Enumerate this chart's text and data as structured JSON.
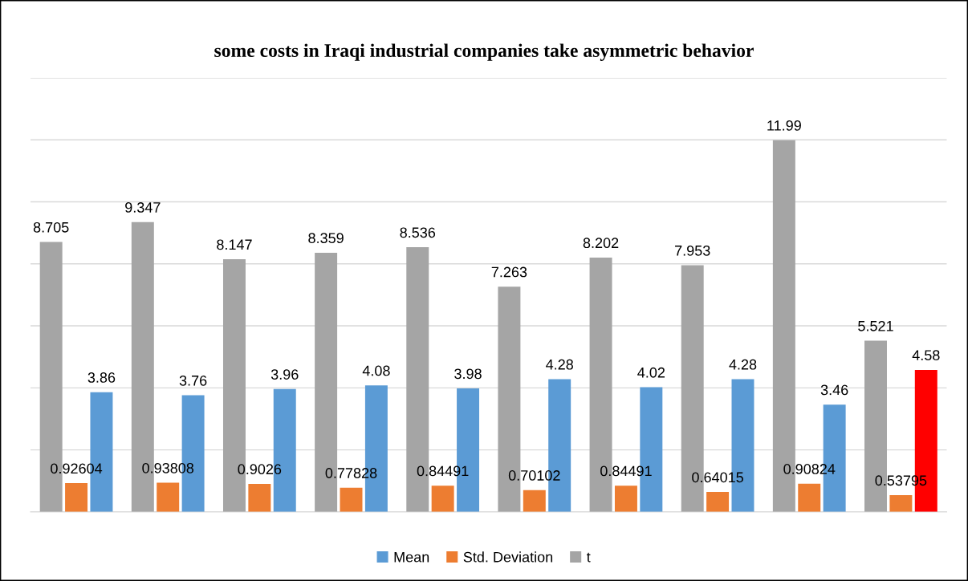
{
  "chart_data": {
    "type": "bar",
    "title": "some costs in Iraqi industrial companies take asymmetric behavior",
    "categories": [
      null,
      null,
      null,
      null,
      null,
      null,
      null,
      null,
      null,
      null
    ],
    "series": [
      {
        "name": "Mean",
        "color": "#5b9bd5",
        "colors": [
          "#5b9bd5",
          "#5b9bd5",
          "#5b9bd5",
          "#5b9bd5",
          "#5b9bd5",
          "#5b9bd5",
          "#5b9bd5",
          "#5b9bd5",
          "#5b9bd5",
          "#ff0000"
        ],
        "values": [
          3.86,
          3.76,
          3.96,
          4.08,
          3.98,
          4.28,
          4.02,
          4.28,
          3.46,
          4.58
        ]
      },
      {
        "name": "Std. Deviation",
        "color": "#ed7d31",
        "values": [
          0.92604,
          0.93808,
          0.9026,
          0.77828,
          0.84491,
          0.70102,
          0.84491,
          0.64015,
          0.90824,
          0.53795
        ]
      },
      {
        "name": "t",
        "color": "#a5a5a5",
        "values": [
          8.705,
          9.347,
          8.147,
          8.359,
          8.536,
          7.263,
          8.202,
          7.953,
          11.99,
          5.521
        ]
      }
    ],
    "ylim": [
      0,
      14
    ],
    "yticks": [
      {
        "value": 0,
        "label": null
      },
      {
        "value": 2,
        "label": null
      },
      {
        "value": 4,
        "label": null
      },
      {
        "value": 6,
        "label": null
      },
      {
        "value": 8,
        "label": null
      },
      {
        "value": 10,
        "label": null
      },
      {
        "value": 12,
        "label": null
      },
      {
        "value": 14,
        "label": null
      }
    ],
    "grid": "y",
    "legend": "bottom",
    "data_labels": true
  }
}
